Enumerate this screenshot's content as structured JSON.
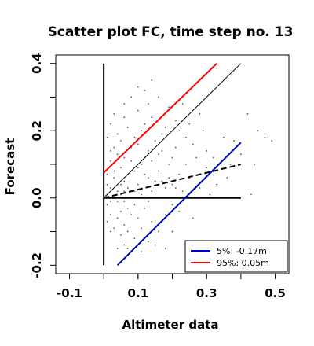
{
  "chart_data": {
    "type": "scatter",
    "title": "Scatter plot FC, time step no. 13",
    "xlabel": "Altimeter data",
    "ylabel": "Forecast",
    "xlim": [
      -0.14,
      0.54
    ],
    "ylim": [
      -0.225,
      0.425
    ],
    "x_ticks": [
      -0.1,
      0.1,
      0.3,
      0.5
    ],
    "x_tick_labels": [
      "-0.1",
      "0.1",
      "0.3",
      "0.5"
    ],
    "y_ticks": [
      -0.2,
      0.0,
      0.2,
      0.4
    ],
    "y_tick_labels": [
      "-0.2",
      "0.0",
      "0.2",
      "0.4"
    ],
    "grid": false,
    "legend_position": "bottom-right",
    "colors": {
      "points": "#555555",
      "upper_band": "#ff0000",
      "lower_band": "#0000cc",
      "reference": "#000000"
    },
    "legend": [
      {
        "label": "5%: -0.17m",
        "color": "#0000cc"
      },
      {
        "label": "95%:  0.05m",
        "color": "#ff0000"
      }
    ],
    "reference_lines": {
      "vertical_zero": {
        "x": [
          0.0,
          0.0
        ],
        "y": [
          -0.2,
          0.4
        ]
      },
      "horizontal_zero": {
        "x": [
          0.0,
          0.4
        ],
        "y": [
          0.0,
          0.0
        ]
      },
      "identity": {
        "x": [
          0.0,
          0.4
        ],
        "y": [
          0.0,
          0.4
        ]
      },
      "upper_band": {
        "x": [
          0.0,
          0.33
        ],
        "y": [
          0.075,
          0.4
        ]
      },
      "lower_band": {
        "x": [
          0.04,
          0.4
        ],
        "y": [
          -0.2,
          0.165
        ]
      },
      "regression_dashed": {
        "x": [
          0.0,
          0.4
        ],
        "y": [
          0.0,
          0.1
        ]
      }
    },
    "points": [
      [
        0.01,
        0.01
      ],
      [
        0.02,
        0.03
      ],
      [
        0.01,
        -0.02
      ],
      [
        0.03,
        0.0
      ],
      [
        0.02,
        -0.01
      ],
      [
        0.04,
        0.02
      ],
      [
        0.05,
        0.04
      ],
      [
        0.03,
        0.06
      ],
      [
        0.01,
        0.04
      ],
      [
        0.06,
        -0.01
      ],
      [
        0.05,
        -0.04
      ],
      [
        0.04,
        -0.06
      ],
      [
        0.02,
        -0.05
      ],
      [
        0.07,
        0.03
      ],
      [
        0.08,
        0.0
      ],
      [
        0.06,
        0.05
      ],
      [
        0.09,
        -0.02
      ],
      [
        0.03,
        0.08
      ],
      [
        0.05,
        0.09
      ],
      [
        0.07,
        0.07
      ],
      [
        0.08,
        -0.05
      ],
      [
        0.06,
        -0.08
      ],
      [
        0.1,
        0.04
      ],
      [
        0.11,
        0.01
      ],
      [
        0.09,
        0.08
      ],
      [
        0.12,
        -0.03
      ],
      [
        0.1,
        -0.06
      ],
      [
        0.13,
        0.06
      ],
      [
        0.14,
        0.02
      ],
      [
        0.11,
        0.1
      ],
      [
        0.02,
        0.11
      ],
      [
        0.04,
        0.13
      ],
      [
        0.06,
        0.12
      ],
      [
        0.01,
        0.07
      ],
      [
        0.03,
        -0.09
      ],
      [
        0.05,
        -0.11
      ],
      [
        0.07,
        -0.1
      ],
      [
        0.09,
        -0.12
      ],
      [
        0.12,
        0.12
      ],
      [
        0.15,
        0.0
      ],
      [
        0.16,
        0.08
      ],
      [
        0.14,
        -0.07
      ],
      [
        0.17,
        0.05
      ],
      [
        0.13,
        0.14
      ],
      [
        0.08,
        0.15
      ],
      [
        0.1,
        0.16
      ],
      [
        0.05,
        0.17
      ],
      [
        0.04,
        0.19
      ],
      [
        0.07,
        0.21
      ],
      [
        0.09,
        0.18
      ],
      [
        0.11,
        0.2
      ],
      [
        0.18,
        0.03
      ],
      [
        0.19,
        0.1
      ],
      [
        0.2,
        -0.02
      ],
      [
        0.16,
        -0.1
      ],
      [
        0.15,
        0.17
      ],
      [
        0.12,
        0.22
      ],
      [
        0.14,
        0.24
      ],
      [
        0.17,
        0.19
      ],
      [
        0.06,
        0.24
      ],
      [
        0.03,
        0.25
      ],
      [
        0.02,
        0.14
      ],
      [
        0.13,
        -0.13
      ],
      [
        0.11,
        -0.16
      ],
      [
        0.09,
        -0.15
      ],
      [
        0.06,
        -0.14
      ],
      [
        0.04,
        -0.15
      ],
      [
        0.2,
        0.12
      ],
      [
        0.22,
        0.07
      ],
      [
        0.21,
        0.15
      ],
      [
        0.23,
        0.02
      ],
      [
        0.24,
        0.1
      ],
      [
        0.18,
        -0.05
      ],
      [
        0.25,
        0.06
      ],
      [
        0.27,
        0.12
      ],
      [
        0.22,
        0.2
      ],
      [
        0.19,
        0.27
      ],
      [
        0.16,
        0.3
      ],
      [
        0.13,
        0.28
      ],
      [
        0.1,
        0.26
      ],
      [
        0.18,
        -0.15
      ],
      [
        0.2,
        -0.1
      ],
      [
        0.15,
        -0.14
      ],
      [
        0.28,
        0.03
      ],
      [
        0.3,
        0.09
      ],
      [
        0.26,
        0.16
      ],
      [
        0.29,
        0.2
      ],
      [
        0.32,
        0.12
      ],
      [
        0.24,
        0.18
      ],
      [
        0.08,
        0.3
      ],
      [
        0.12,
        0.32
      ],
      [
        0.26,
        -0.06
      ],
      [
        0.3,
        0.14
      ],
      [
        0.33,
        0.04
      ],
      [
        0.35,
        0.18
      ],
      [
        0.37,
        0.1
      ],
      [
        0.36,
        0.06
      ],
      [
        0.31,
        0.01
      ],
      [
        0.25,
        0.22
      ],
      [
        0.21,
        0.23
      ],
      [
        0.42,
        0.25
      ],
      [
        0.45,
        0.2
      ],
      [
        0.47,
        0.18
      ],
      [
        0.49,
        0.17
      ],
      [
        0.44,
        0.1
      ],
      [
        0.38,
        0.17
      ],
      [
        0.4,
        0.13
      ],
      [
        0.43,
        0.01
      ],
      [
        0.28,
        0.25
      ],
      [
        0.23,
        0.28
      ],
      [
        0.01,
        -0.07
      ],
      [
        0.02,
        -0.1
      ],
      [
        0.0,
        0.05
      ],
      [
        0.0,
        -0.04
      ],
      [
        0.03,
        0.15
      ],
      [
        0.01,
        0.18
      ],
      [
        0.05,
        0.01
      ],
      [
        0.06,
        0.02
      ],
      [
        0.07,
        -0.03
      ],
      [
        0.04,
        -0.01
      ],
      [
        0.08,
        0.11
      ],
      [
        0.1,
        0.09
      ],
      [
        0.12,
        0.07
      ],
      [
        0.14,
        0.11
      ],
      [
        0.16,
        0.13
      ],
      [
        0.07,
        -0.15
      ],
      [
        0.09,
        0.02
      ],
      [
        0.11,
        -0.09
      ],
      [
        0.13,
        -0.01
      ],
      [
        0.15,
        0.05
      ],
      [
        0.17,
        0.14
      ],
      [
        0.19,
        0.06
      ],
      [
        0.21,
        0.03
      ],
      [
        0.18,
        0.21
      ],
      [
        0.02,
        0.22
      ],
      [
        0.14,
        0.35
      ],
      [
        0.1,
        0.33
      ],
      [
        0.06,
        0.28
      ],
      [
        0.2,
        0.04
      ],
      [
        0.22,
        -0.04
      ]
    ]
  }
}
